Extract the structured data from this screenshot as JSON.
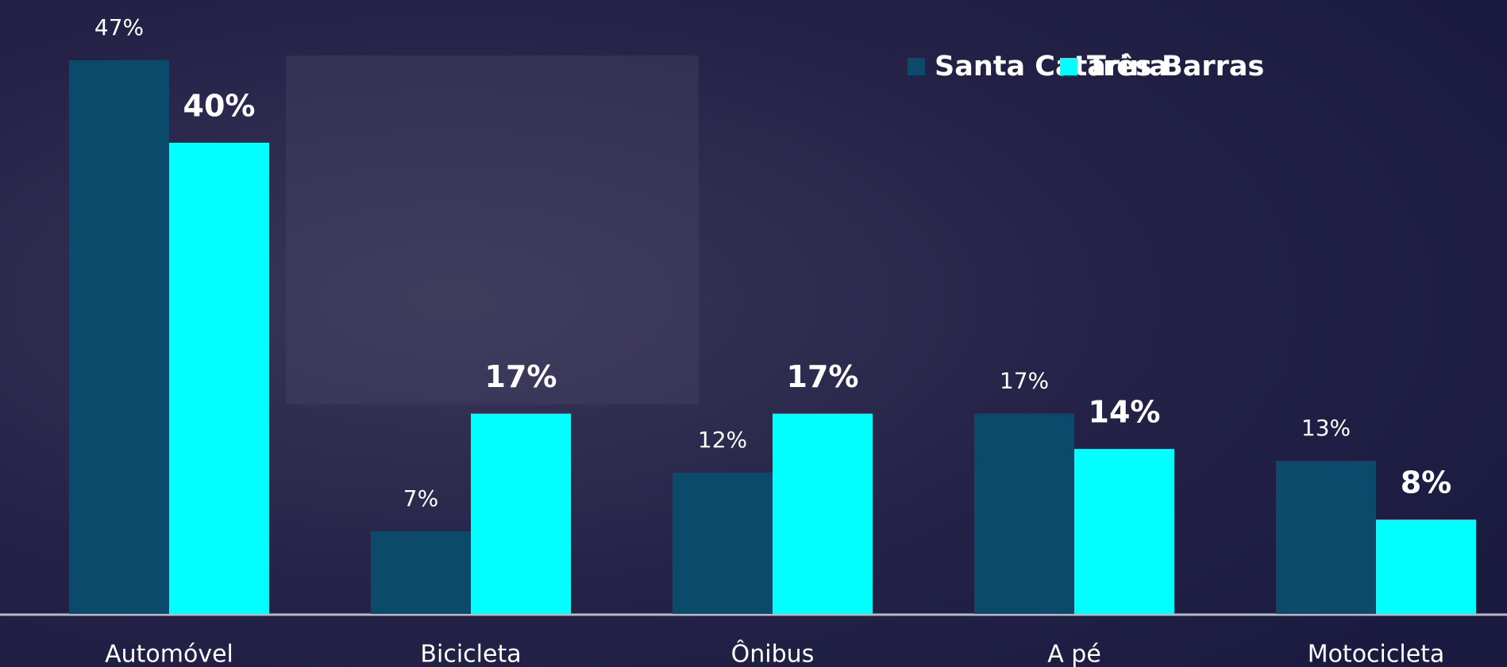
{
  "chart_data": {
    "type": "bar",
    "categories": [
      "Automóvel",
      "Bicicleta",
      "Ônibus",
      "A pé",
      "Motocicleta"
    ],
    "series": [
      {
        "name": "Santa Catarina",
        "color": "#0b4a6b",
        "values": [
          47,
          7,
          12,
          17,
          13
        ],
        "value_labels": [
          "47%",
          "7%",
          "12%",
          "17%",
          "13%"
        ]
      },
      {
        "name": "Três Barras",
        "color": "#00ffff",
        "values": [
          40,
          17,
          17,
          14,
          8
        ],
        "value_labels": [
          "40%",
          "17%",
          "17%",
          "14%",
          "8%"
        ]
      }
    ],
    "legend": "top-right"
  }
}
